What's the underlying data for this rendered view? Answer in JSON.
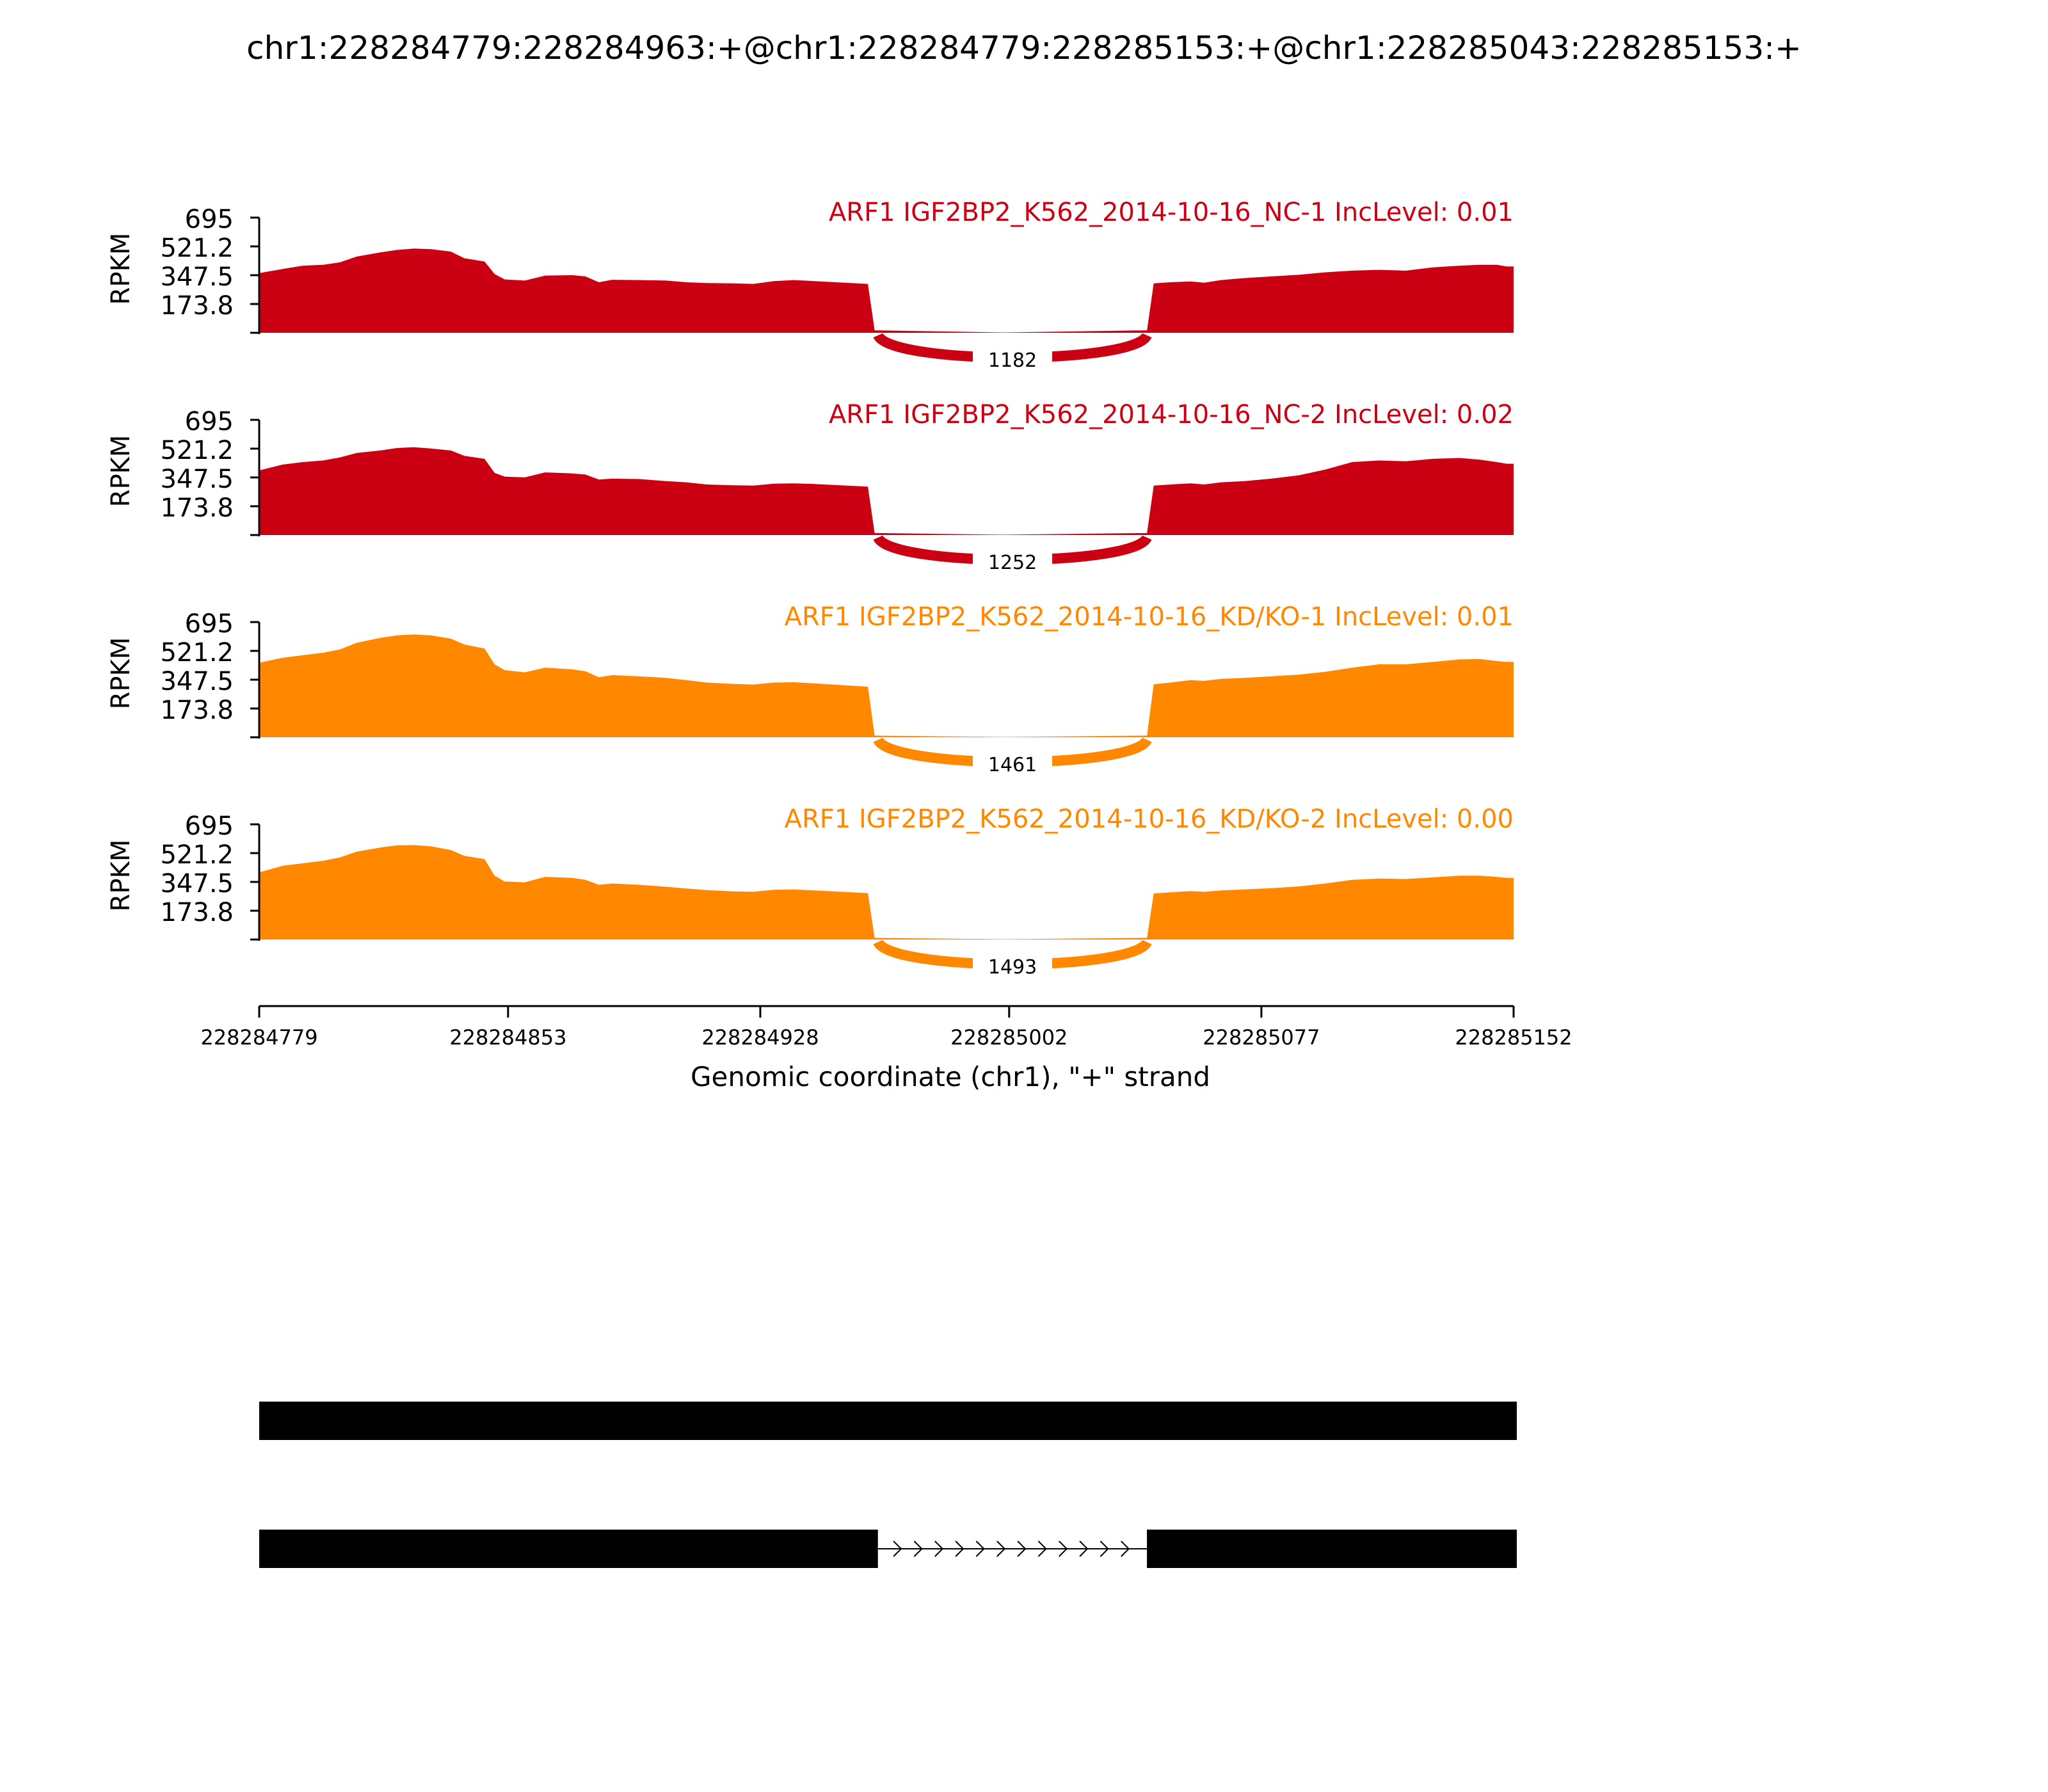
{
  "title": "chr1:228284779:228284963:+@chr1:228284779:228285153:+@chr1:228285043:228285153:+",
  "colors": {
    "nc": "#cc0013",
    "kd": "#ff8800",
    "text": "#000000",
    "junction_label_bg": "#ffffff"
  },
  "chart_data": {
    "type": "area",
    "x_range": [
      228284779,
      228285152
    ],
    "ylabel": "RPKM",
    "ylim": [
      0,
      695
    ],
    "y_ticks": [
      "695",
      "521.2",
      "347.5",
      "173.8"
    ],
    "x_ticks": [
      {
        "value": 228284779,
        "label": "228284779"
      },
      {
        "value": 228284853,
        "label": "228284853"
      },
      {
        "value": 228284928,
        "label": "228284928"
      },
      {
        "value": 228285002,
        "label": "228285002"
      },
      {
        "value": 228285077,
        "label": "228285077"
      },
      {
        "value": 228285152,
        "label": "228285152"
      }
    ],
    "xlabel": "Genomic coordinate (chr1), \"+\" strand",
    "series": [
      {
        "name": "ARF1 IGF2BP2_K562_2014-10-16_NC-1 IncLevel: 0.01",
        "color": "#cc0013",
        "junction": {
          "start": 228284963,
          "end": 228285043,
          "reads": "1182"
        },
        "coverage": [
          [
            228284779,
            360
          ],
          [
            228284786,
            385
          ],
          [
            228284792,
            405
          ],
          [
            228284798,
            410
          ],
          [
            228284803,
            425
          ],
          [
            228284808,
            460
          ],
          [
            228284815,
            485
          ],
          [
            228284820,
            500
          ],
          [
            228284825,
            508
          ],
          [
            228284830,
            505
          ],
          [
            228284836,
            490
          ],
          [
            228284840,
            450
          ],
          [
            228284846,
            430
          ],
          [
            228284849,
            355
          ],
          [
            228284852,
            322
          ],
          [
            228284858,
            315
          ],
          [
            228284864,
            345
          ],
          [
            228284872,
            348
          ],
          [
            228284876,
            340
          ],
          [
            228284880,
            305
          ],
          [
            228284884,
            320
          ],
          [
            228284892,
            318
          ],
          [
            228284900,
            315
          ],
          [
            228284906,
            305
          ],
          [
            228284912,
            300
          ],
          [
            228284920,
            298
          ],
          [
            228284926,
            295
          ],
          [
            228284932,
            312
          ],
          [
            228284938,
            318
          ],
          [
            228284944,
            312
          ],
          [
            228284960,
            295
          ],
          [
            228284962,
            15
          ],
          [
            228285000,
            2
          ],
          [
            228285043,
            15
          ],
          [
            228285045,
            298
          ],
          [
            228285050,
            305
          ],
          [
            228285056,
            310
          ],
          [
            228285060,
            302
          ],
          [
            228285065,
            318
          ],
          [
            228285072,
            330
          ],
          [
            228285080,
            340
          ],
          [
            228285088,
            350
          ],
          [
            228285096,
            365
          ],
          [
            228285104,
            375
          ],
          [
            228285112,
            380
          ],
          [
            228285120,
            375
          ],
          [
            228285128,
            395
          ],
          [
            228285136,
            405
          ],
          [
            228285142,
            410
          ],
          [
            228285147,
            410
          ],
          [
            228285150,
            400
          ],
          [
            228285152,
            400
          ]
        ]
      },
      {
        "name": "ARF1 IGF2BP2_K562_2014-10-16_NC-2 IncLevel: 0.02",
        "color": "#cc0013",
        "junction": {
          "start": 228284963,
          "end": 228285043,
          "reads": "1252"
        },
        "coverage": [
          [
            228284779,
            390
          ],
          [
            228284786,
            425
          ],
          [
            228284792,
            440
          ],
          [
            228284798,
            450
          ],
          [
            228284803,
            468
          ],
          [
            228284808,
            495
          ],
          [
            228284815,
            510
          ],
          [
            228284820,
            525
          ],
          [
            228284825,
            530
          ],
          [
            228284830,
            522
          ],
          [
            228284836,
            510
          ],
          [
            228284840,
            478
          ],
          [
            228284846,
            460
          ],
          [
            228284849,
            375
          ],
          [
            228284852,
            352
          ],
          [
            228284858,
            348
          ],
          [
            228284864,
            378
          ],
          [
            228284872,
            372
          ],
          [
            228284876,
            365
          ],
          [
            228284880,
            335
          ],
          [
            228284884,
            340
          ],
          [
            228284892,
            338
          ],
          [
            228284900,
            325
          ],
          [
            228284906,
            318
          ],
          [
            228284912,
            305
          ],
          [
            228284920,
            300
          ],
          [
            228284926,
            298
          ],
          [
            228284932,
            310
          ],
          [
            228284938,
            312
          ],
          [
            228284944,
            308
          ],
          [
            228284960,
            292
          ],
          [
            228284962,
            12
          ],
          [
            228285000,
            2
          ],
          [
            228285043,
            12
          ],
          [
            228285045,
            298
          ],
          [
            228285050,
            305
          ],
          [
            228285056,
            312
          ],
          [
            228285060,
            305
          ],
          [
            228285065,
            318
          ],
          [
            228285072,
            325
          ],
          [
            228285080,
            340
          ],
          [
            228285088,
            360
          ],
          [
            228285096,
            395
          ],
          [
            228285104,
            440
          ],
          [
            228285112,
            450
          ],
          [
            228285120,
            445
          ],
          [
            228285128,
            460
          ],
          [
            228285136,
            465
          ],
          [
            228285142,
            455
          ],
          [
            228285147,
            440
          ],
          [
            228285150,
            430
          ],
          [
            228285152,
            430
          ]
        ]
      },
      {
        "name": "ARF1 IGF2BP2_K562_2014-10-16_KD/KO-1 IncLevel: 0.01",
        "color": "#ff8800",
        "junction": {
          "start": 228284963,
          "end": 228285043,
          "reads": "1461"
        },
        "coverage": [
          [
            228284779,
            450
          ],
          [
            228284786,
            480
          ],
          [
            228284792,
            495
          ],
          [
            228284798,
            510
          ],
          [
            228284803,
            530
          ],
          [
            228284808,
            570
          ],
          [
            228284815,
            600
          ],
          [
            228284820,
            615
          ],
          [
            228284825,
            620
          ],
          [
            228284830,
            615
          ],
          [
            228284836,
            595
          ],
          [
            228284840,
            560
          ],
          [
            228284846,
            535
          ],
          [
            228284849,
            440
          ],
          [
            228284852,
            405
          ],
          [
            228284858,
            392
          ],
          [
            228284864,
            420
          ],
          [
            228284872,
            410
          ],
          [
            228284876,
            398
          ],
          [
            228284880,
            362
          ],
          [
            228284884,
            375
          ],
          [
            228284892,
            368
          ],
          [
            228284900,
            358
          ],
          [
            228284906,
            345
          ],
          [
            228284912,
            330
          ],
          [
            228284920,
            322
          ],
          [
            228284926,
            318
          ],
          [
            228284932,
            330
          ],
          [
            228284938,
            332
          ],
          [
            228284944,
            325
          ],
          [
            228284960,
            305
          ],
          [
            228284962,
            10
          ],
          [
            228285000,
            2
          ],
          [
            228285043,
            10
          ],
          [
            228285045,
            320
          ],
          [
            228285050,
            330
          ],
          [
            228285056,
            345
          ],
          [
            228285060,
            340
          ],
          [
            228285065,
            352
          ],
          [
            228285072,
            358
          ],
          [
            228285080,
            368
          ],
          [
            228285088,
            378
          ],
          [
            228285096,
            395
          ],
          [
            228285104,
            420
          ],
          [
            228285112,
            440
          ],
          [
            228285120,
            440
          ],
          [
            228285128,
            455
          ],
          [
            228285136,
            470
          ],
          [
            228285142,
            472
          ],
          [
            228285147,
            460
          ],
          [
            228285150,
            455
          ],
          [
            228285152,
            455
          ]
        ]
      },
      {
        "name": "ARF1 IGF2BP2_K562_2014-10-16_KD/KO-2 IncLevel: 0.00",
        "color": "#ff8800",
        "junction": {
          "start": 228284963,
          "end": 228285043,
          "reads": "1493"
        },
        "coverage": [
          [
            228284779,
            405
          ],
          [
            228284786,
            445
          ],
          [
            228284792,
            460
          ],
          [
            228284798,
            475
          ],
          [
            228284803,
            495
          ],
          [
            228284808,
            530
          ],
          [
            228284815,
            555
          ],
          [
            228284820,
            568
          ],
          [
            228284825,
            570
          ],
          [
            228284830,
            562
          ],
          [
            228284836,
            540
          ],
          [
            228284840,
            505
          ],
          [
            228284846,
            485
          ],
          [
            228284849,
            385
          ],
          [
            228284852,
            350
          ],
          [
            228284858,
            345
          ],
          [
            228284864,
            378
          ],
          [
            228284872,
            372
          ],
          [
            228284876,
            360
          ],
          [
            228284880,
            330
          ],
          [
            228284884,
            338
          ],
          [
            228284892,
            330
          ],
          [
            228284900,
            318
          ],
          [
            228284906,
            308
          ],
          [
            228284912,
            298
          ],
          [
            228284920,
            290
          ],
          [
            228284926,
            288
          ],
          [
            228284932,
            300
          ],
          [
            228284938,
            302
          ],
          [
            228284944,
            296
          ],
          [
            228284960,
            280
          ],
          [
            228284962,
            10
          ],
          [
            228285000,
            2
          ],
          [
            228285043,
            10
          ],
          [
            228285045,
            278
          ],
          [
            228285050,
            285
          ],
          [
            228285056,
            292
          ],
          [
            228285060,
            288
          ],
          [
            228285065,
            296
          ],
          [
            228285072,
            302
          ],
          [
            228285080,
            310
          ],
          [
            228285088,
            320
          ],
          [
            228285096,
            338
          ],
          [
            228285104,
            360
          ],
          [
            228285112,
            368
          ],
          [
            228285120,
            365
          ],
          [
            228285128,
            375
          ],
          [
            228285136,
            385
          ],
          [
            228285142,
            385
          ],
          [
            228285147,
            378
          ],
          [
            228285150,
            372
          ],
          [
            228285152,
            372
          ]
        ]
      }
    ],
    "isoforms": [
      {
        "exons": [
          [
            228284779,
            228285153
          ]
        ]
      },
      {
        "exons": [
          [
            228284779,
            228284963
          ],
          [
            228285043,
            228285153
          ]
        ],
        "intron_direction": "+"
      }
    ]
  }
}
